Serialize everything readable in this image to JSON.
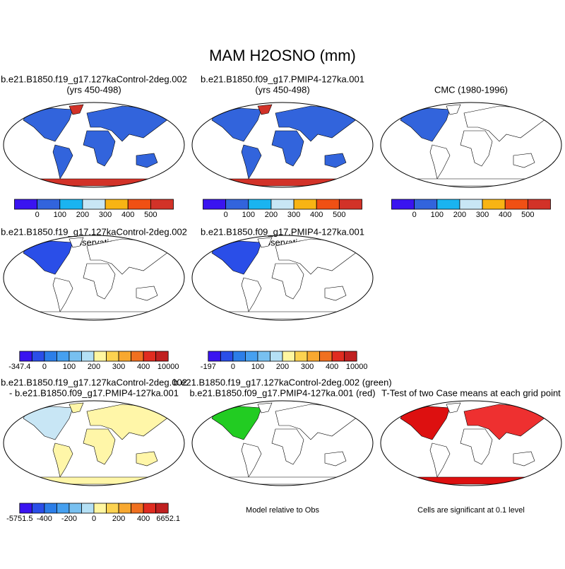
{
  "title": "MAM H2OSNO (mm)",
  "rows": [
    [
      {
        "title": [
          "b.e21.B1850.f19_g17.127kaControl-2deg.002",
          "(yrs 450-498)"
        ],
        "colorbar": {
          "colors": [
            "#3a14f0",
            "#3264dc",
            "#1ab4f0",
            "#c8e6f5",
            "#f8b414",
            "#f05014",
            "#d23228"
          ],
          "labels": [
            "0",
            "100",
            "200",
            "300",
            "400",
            "500"
          ]
        }
      },
      {
        "title": [
          "b.e21.B1850.f09_g17.PMIP4-127ka.001",
          "(yrs 450-498)"
        ],
        "colorbar": {
          "colors": [
            "#3a14f0",
            "#3264dc",
            "#1ab4f0",
            "#c8e6f5",
            "#f8b414",
            "#f05014",
            "#d23228"
          ],
          "labels": [
            "0",
            "100",
            "200",
            "300",
            "400",
            "500"
          ]
        }
      },
      {
        "title": [
          "CMC (1980-1996)"
        ],
        "colorbar": {
          "colors": [
            "#3a14f0",
            "#3264dc",
            "#1ab4f0",
            "#c8e6f5",
            "#f8b414",
            "#f05014",
            "#d23228"
          ],
          "labels": [
            "0",
            "100",
            "200",
            "300",
            "400",
            "500"
          ]
        }
      }
    ],
    [
      {
        "title": [
          "b.e21.B1850.f19_g17.127kaControl-2deg.002",
          "- Observations"
        ],
        "colorbar": {
          "colors": [
            "#3a14f0",
            "#2a4ee8",
            "#2c7ee8",
            "#46a0f0",
            "#78c0f0",
            "#b4e0f5",
            "#fff6a0",
            "#fcd250",
            "#f8a830",
            "#f07020",
            "#e02c20",
            "#c02020"
          ],
          "labels": [
            "-347.4",
            "0",
            "100",
            "200",
            "300",
            "400",
            "10000"
          ]
        }
      },
      {
        "title": [
          "b.e21.B1850.f09_g17.PMIP4-127ka.001",
          "- Observations"
        ],
        "colorbar": {
          "colors": [
            "#3a14f0",
            "#2a4ee8",
            "#2c7ee8",
            "#46a0f0",
            "#78c0f0",
            "#b4e0f5",
            "#fff6a0",
            "#fcd250",
            "#f8a830",
            "#f07020",
            "#e02c20",
            "#c02020"
          ],
          "labels": [
            "-197",
            "0",
            "100",
            "200",
            "300",
            "400",
            "10000"
          ]
        }
      }
    ],
    [
      {
        "title": [
          "b.e21.B1850.f19_g17.127kaControl-2deg.002",
          "- b.e21.B1850.f09_g17.PMIP4-127ka.001"
        ],
        "colorbar": {
          "colors": [
            "#3a14f0",
            "#2a4ee8",
            "#2c7ee8",
            "#46a0f0",
            "#78c0f0",
            "#b4e0f5",
            "#fff6a0",
            "#fcd250",
            "#f8a830",
            "#f07020",
            "#e02c20",
            "#c02020"
          ],
          "labels": [
            "-5751.5",
            "-400",
            "-200",
            "0",
            "200",
            "400",
            "6652.1"
          ]
        }
      },
      {
        "title": [
          "b.e21.B1850.f19_g17.127kaControl-2deg.002 (green)",
          "b.e21.B1850.f09_g17.PMIP4-127ka.001 (red)"
        ],
        "caption": "Model relative to Obs"
      },
      {
        "title": [
          "T-Test of two Case means at each grid point"
        ],
        "caption": "Cells are significant at 0.1 level"
      }
    ]
  ]
}
